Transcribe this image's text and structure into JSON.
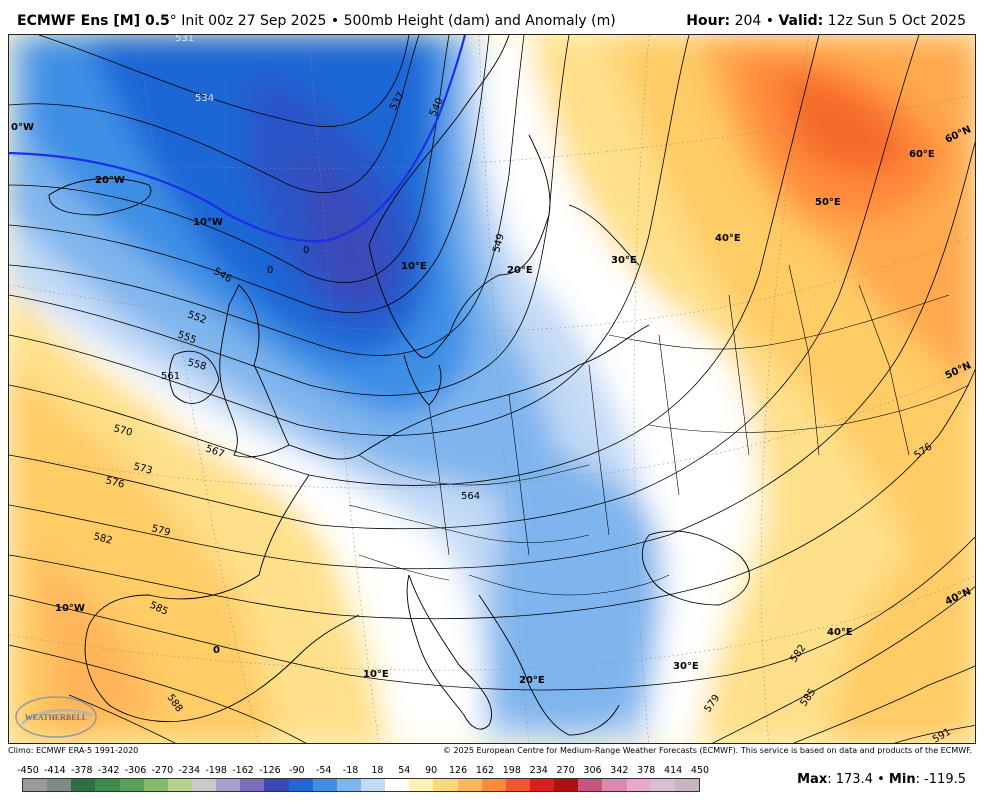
{
  "header": {
    "model": "ECMWF Ens [M] 0.5",
    "degree": "°",
    "init": "Init 00z 27 Sep 2025",
    "bullet": "•",
    "product": "500mb Height (dam) and Anomaly (m)",
    "hour_label": "Hour:",
    "hour_value": "204",
    "valid_label": "Valid:",
    "valid_value": "12z Sun 5 Oct 2025"
  },
  "footer": {
    "climo": "Climo: ECMWF ERA-5 1991-2020",
    "copyright": "© 2025 European Centre for Medium-Range Weather Forecasts (ECMWF). This service is based on data and products of the ECMWF."
  },
  "colorbar": {
    "ticks": [
      "-450",
      "-414",
      "-378",
      "-342",
      "-306",
      "-270",
      "-234",
      "-198",
      "-162",
      "-126",
      "-90",
      "-54",
      "-18",
      "18",
      "54",
      "90",
      "126",
      "162",
      "198",
      "234",
      "270",
      "306",
      "342",
      "378",
      "414",
      "450"
    ],
    "colors": [
      "#9a9a9a",
      "#7c8c84",
      "#2f6f45",
      "#3d8a4d",
      "#5aa05a",
      "#86bb6c",
      "#b5d38f",
      "#c9c9c9",
      "#a99fcf",
      "#7a6ec0",
      "#3b49b8",
      "#1f66d6",
      "#3d8fe6",
      "#7fb5ee",
      "#c3daf6",
      "#ffffff",
      "#fff3b8",
      "#ffd877",
      "#ffb55a",
      "#ff8a3a",
      "#f4552a",
      "#d92020",
      "#b01010",
      "#c7547c",
      "#dd87b1",
      "#e7a9c9",
      "#d9bfd3",
      "#c8b3c3"
    ]
  },
  "stats": {
    "max_label": "Max",
    "max_value": ": 173.4",
    "bullet": "•",
    "min_label": "Min",
    "min_value": ": -119.5"
  },
  "map": {
    "contour_labels": [
      "531",
      "534",
      "537",
      "540",
      "549",
      "546",
      "552",
      "555",
      "558",
      "561",
      "567",
      "564",
      "570",
      "573",
      "576",
      "579",
      "582",
      "585",
      "588",
      "579",
      "582",
      "585",
      "591",
      "576",
      "0",
      "0"
    ],
    "lat_lon_labels": [
      "0°W",
      "20°W",
      "10°W",
      "10°E",
      "20°E",
      "30°E",
      "40°E",
      "50°E",
      "60°E",
      "60°N",
      "50°N",
      "40°N",
      "10°W",
      "0",
      "10°E",
      "20°E",
      "30°E",
      "40°E"
    ]
  },
  "logo": {
    "text": "WEATHERBELL"
  }
}
